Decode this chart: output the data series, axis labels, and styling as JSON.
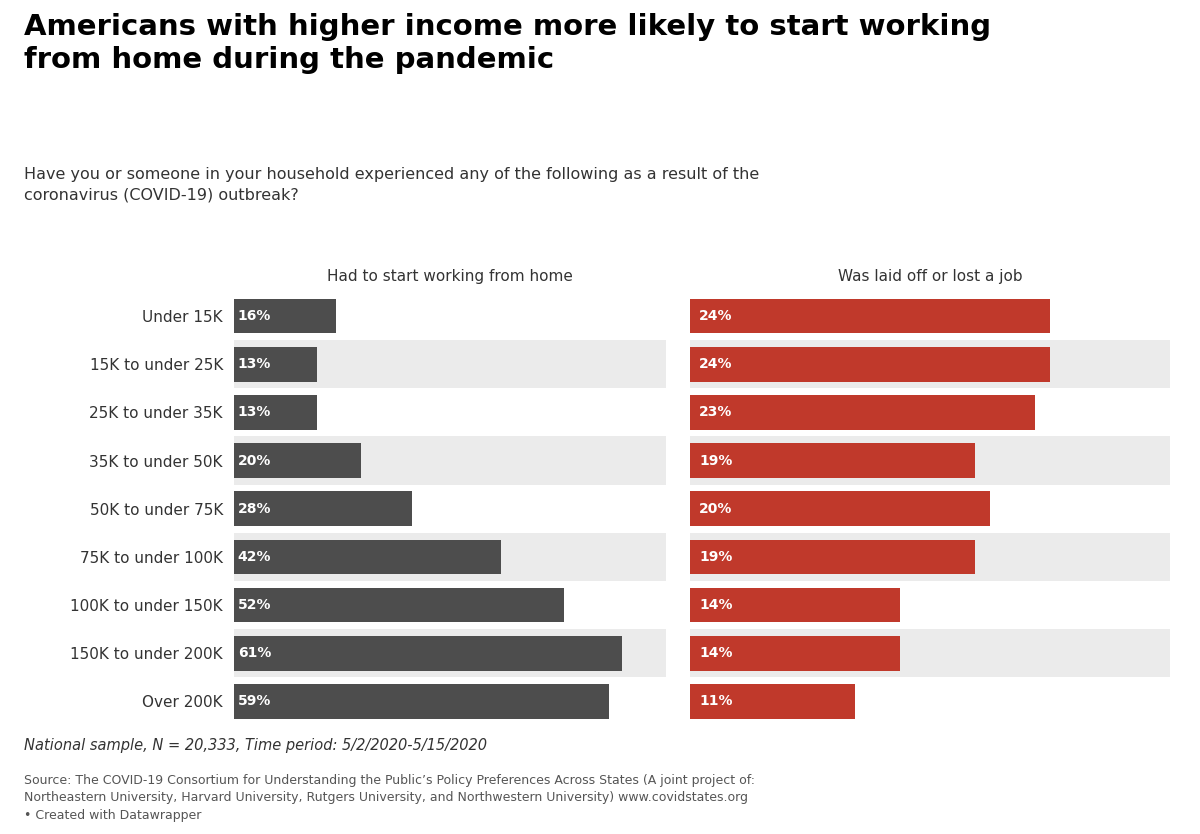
{
  "title_line1": "Americans with higher income more likely to start working",
  "title_line2": "from home during the pandemic",
  "subtitle": "Have you or someone in your household experienced any of the following as a result of the\ncoronavirus (COVID-19) outbreak?",
  "col1_title": "Had to start working from home",
  "col2_title": "Was laid off or lost a job",
  "categories": [
    "Under 15K",
    "15K to under 25K",
    "25K to under 35K",
    "35K to under 50K",
    "50K to under 75K",
    "75K to under 100K",
    "100K to under 150K",
    "150K to under 200K",
    "Over 200K"
  ],
  "wfh_values": [
    16,
    13,
    13,
    20,
    28,
    42,
    52,
    61,
    59
  ],
  "laid_off_values": [
    24,
    24,
    23,
    19,
    20,
    19,
    14,
    14,
    11
  ],
  "wfh_color": "#4d4d4d",
  "laid_off_color": "#c0392b",
  "bar_height": 0.72,
  "bg_color": "#ffffff",
  "row_odd_color": "#ffffff",
  "row_even_color": "#ebebeb",
  "footnote_italic": "National sample, N = 20,333, Time period: 5/2/2020-5/15/2020",
  "footnote_source": "Source: The COVID-19 Consortium for Understanding the Public’s Policy Preferences Across States (A joint project of:\nNortheastern University, Harvard University, Rutgers University, and Northwestern University) www.covidstates.org\n• Created with Datawrapper"
}
